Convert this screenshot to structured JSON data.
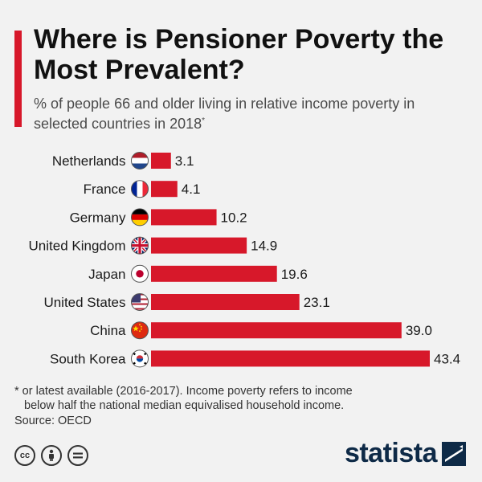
{
  "header": {
    "title": "Where is Pensioner Poverty the Most Prevalent?",
    "subtitle": "% of people 66 and older living in relative income poverty in selected countries in 2018",
    "subtitle_mark": "*"
  },
  "chart_data": {
    "type": "bar",
    "orientation": "horizontal",
    "title": "Where is Pensioner Poverty the Most Prevalent?",
    "xlabel": "",
    "ylabel": "",
    "xlim": [
      0,
      45
    ],
    "categories": [
      "Netherlands",
      "France",
      "Germany",
      "United Kingdom",
      "Japan",
      "United States",
      "China",
      "South Korea"
    ],
    "values": [
      3.1,
      4.1,
      10.2,
      14.9,
      19.6,
      23.1,
      39.0,
      43.4
    ],
    "value_labels": [
      "3.1",
      "4.1",
      "10.2",
      "14.9",
      "19.6",
      "23.1",
      "39.0",
      "43.4"
    ],
    "flags": [
      "netherlands-flag-icon",
      "france-flag-icon",
      "germany-flag-icon",
      "united-kingdom-flag-icon",
      "japan-flag-icon",
      "united-states-flag-icon",
      "china-flag-icon",
      "south-korea-flag-icon"
    ],
    "bar_color": "#d7182a"
  },
  "footer": {
    "note_line1": "* or latest available (2016-2017). Income poverty refers to income",
    "note_line2": "below half the national median equivalised household income.",
    "source": "Source: OECD",
    "license_icons": [
      "cc-icon",
      "by-icon",
      "nd-icon"
    ],
    "cc_glyph": "cc",
    "brand": "statista"
  },
  "colors": {
    "accent": "#d7182a",
    "brand": "#0e2a47",
    "background": "#f2f2f2"
  }
}
